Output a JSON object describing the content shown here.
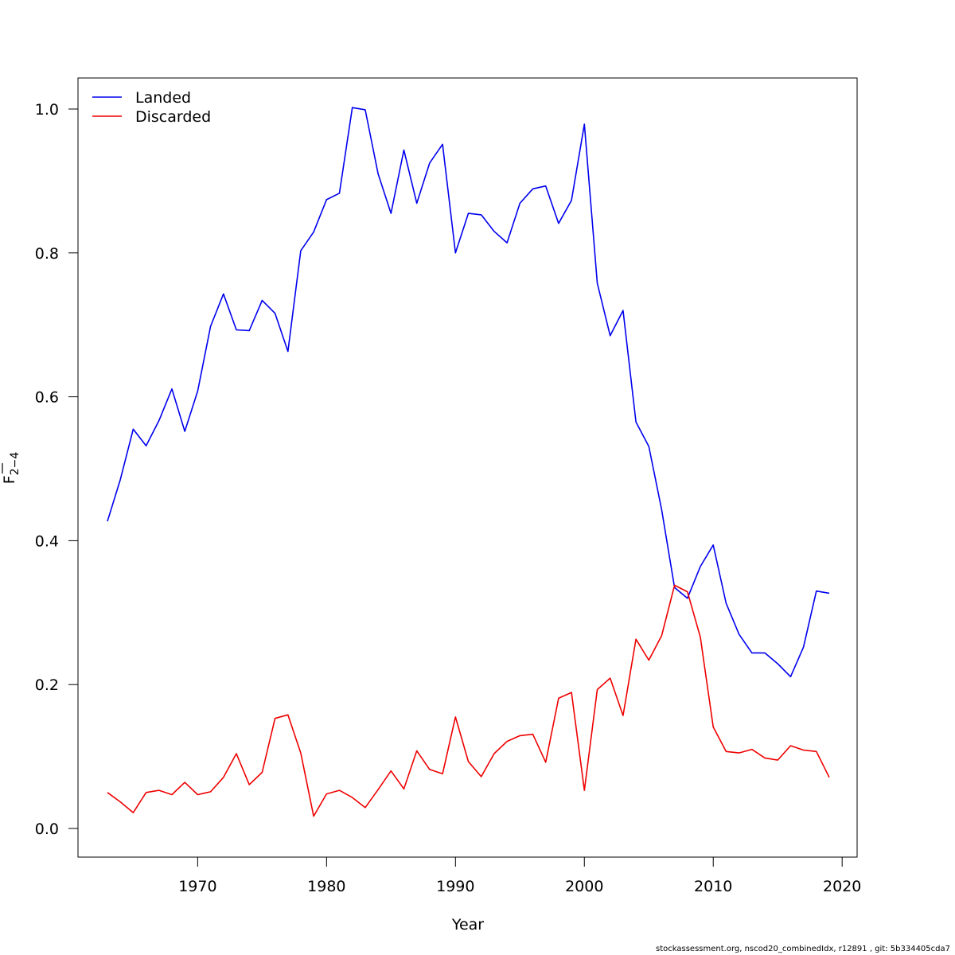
{
  "chart_data": {
    "type": "line",
    "title": "",
    "xlabel": "Year",
    "ylabel_main": "F",
    "ylabel_sub": "2−4",
    "xlim": [
      1963,
      2019
    ],
    "ylim": [
      0,
      1
    ],
    "xticks": [
      1970,
      1980,
      1990,
      2000,
      2010,
      2020
    ],
    "xtick_labels": [
      "1970",
      "1980",
      "1990",
      "2000",
      "2010",
      "2020"
    ],
    "yticks": [
      0,
      0.2,
      0.4,
      0.6,
      0.8,
      1.0
    ],
    "ytick_labels": [
      "0.0",
      "0.2",
      "0.4",
      "0.6",
      "0.8",
      "1.0"
    ],
    "grid": false,
    "legend_position": "top-left",
    "x": [
      1963,
      1964,
      1965,
      1966,
      1967,
      1968,
      1969,
      1970,
      1971,
      1972,
      1973,
      1974,
      1975,
      1976,
      1977,
      1978,
      1979,
      1980,
      1981,
      1982,
      1983,
      1984,
      1985,
      1986,
      1987,
      1988,
      1989,
      1990,
      1991,
      1992,
      1993,
      1994,
      1995,
      1996,
      1997,
      1998,
      1999,
      2000,
      2001,
      2002,
      2003,
      2004,
      2005,
      2006,
      2007,
      2008,
      2009,
      2010,
      2011,
      2012,
      2013,
      2014,
      2015,
      2016,
      2017,
      2018,
      2019
    ],
    "series": [
      {
        "name": "Landed",
        "color": "#0000ee",
        "values": [
          0.427,
          0.485,
          0.555,
          0.532,
          0.567,
          0.611,
          0.552,
          0.608,
          0.698,
          0.743,
          0.693,
          0.692,
          0.734,
          0.716,
          0.663,
          0.803,
          0.829,
          0.874,
          0.883,
          1.002,
          0.999,
          0.91,
          0.855,
          0.943,
          0.869,
          0.925,
          0.951,
          0.8,
          0.855,
          0.853,
          0.83,
          0.814,
          0.869,
          0.889,
          0.893,
          0.841,
          0.873,
          0.979,
          0.758,
          0.685,
          0.72,
          0.565,
          0.531,
          0.443,
          0.335,
          0.32,
          0.364,
          0.394,
          0.313,
          0.27,
          0.244,
          0.244,
          0.229,
          0.211,
          0.252,
          0.33,
          0.327
        ]
      },
      {
        "name": "Discarded",
        "color": "#ee0000",
        "values": [
          0.05,
          0.037,
          0.022,
          0.05,
          0.053,
          0.047,
          0.064,
          0.047,
          0.051,
          0.071,
          0.104,
          0.061,
          0.078,
          0.153,
          0.158,
          0.105,
          0.017,
          0.048,
          0.053,
          0.043,
          0.029,
          0.054,
          0.08,
          0.055,
          0.108,
          0.082,
          0.076,
          0.155,
          0.093,
          0.072,
          0.104,
          0.121,
          0.129,
          0.131,
          0.092,
          0.181,
          0.189,
          0.053,
          0.193,
          0.209,
          0.157,
          0.263,
          0.234,
          0.268,
          0.338,
          0.329,
          0.266,
          0.141,
          0.107,
          0.105,
          0.11,
          0.098,
          0.095,
          0.115,
          0.109,
          0.107,
          0.071
        ]
      }
    ]
  },
  "footer": "stockassessment.org, nscod20_combinedIdx, r12891 , git: 5b334405cda7"
}
